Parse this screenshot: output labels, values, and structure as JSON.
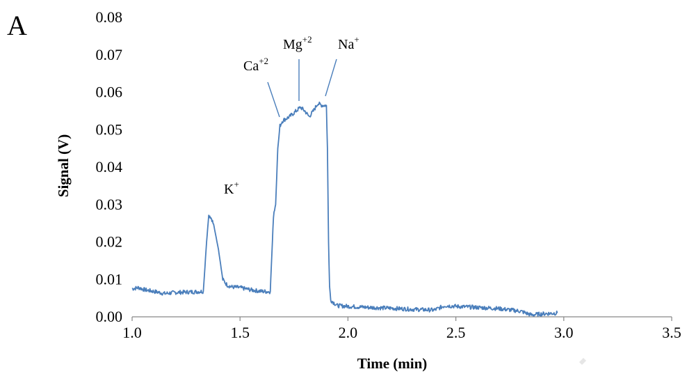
{
  "panel_label": "A",
  "colors": {
    "series": "#4A7EBB",
    "axis": "#868686"
  },
  "chart_data": {
    "type": "line",
    "xlabel": "Time (min)",
    "ylabel": "Signal (V)",
    "xlim": [
      1.0,
      3.5
    ],
    "ylim": [
      0.0,
      0.08
    ],
    "grid": false,
    "x_ticks": [
      1.0,
      1.5,
      2.0,
      2.5,
      3.0,
      3.5
    ],
    "y_ticks": [
      0.0,
      0.01,
      0.02,
      0.03,
      0.04,
      0.05,
      0.06,
      0.07,
      0.08
    ],
    "x_tick_labels": [
      "1.0",
      "1.5",
      "2.0",
      "2.5",
      "3.0",
      "3.5"
    ],
    "y_tick_labels": [
      "0.00",
      "0.01",
      "0.02",
      "0.03",
      "0.04",
      "0.05",
      "0.06",
      "0.07",
      "0.08"
    ],
    "series": [
      {
        "x": [
          1.0,
          1.03,
          1.06,
          1.1,
          1.15,
          1.2,
          1.25,
          1.3,
          1.33,
          1.345,
          1.355,
          1.36,
          1.37,
          1.38,
          1.4,
          1.42,
          1.44,
          1.46,
          1.5,
          1.55,
          1.6,
          1.64,
          1.655,
          1.665,
          1.675,
          1.685,
          1.695,
          1.7,
          1.73,
          1.76,
          1.78,
          1.8,
          1.82,
          1.84,
          1.86,
          1.88,
          1.9,
          1.905,
          1.91,
          1.915,
          1.92,
          1.95,
          2.0,
          2.1,
          2.2,
          2.3,
          2.4,
          2.45,
          2.5,
          2.6,
          2.7,
          2.8,
          2.85,
          2.9,
          2.97
        ],
        "y": [
          0.0075,
          0.0078,
          0.0072,
          0.0068,
          0.0062,
          0.0065,
          0.0066,
          0.0067,
          0.0068,
          0.02,
          0.027,
          0.027,
          0.026,
          0.024,
          0.018,
          0.01,
          0.0085,
          0.008,
          0.0078,
          0.0072,
          0.0068,
          0.0067,
          0.027,
          0.03,
          0.045,
          0.051,
          0.0522,
          0.0525,
          0.0535,
          0.055,
          0.056,
          0.055,
          0.0535,
          0.055,
          0.057,
          0.0565,
          0.0565,
          0.045,
          0.02,
          0.008,
          0.0045,
          0.003,
          0.0028,
          0.0025,
          0.0023,
          0.002,
          0.0018,
          0.003,
          0.0028,
          0.0025,
          0.0022,
          0.0015,
          0.0005,
          0.0008,
          0.001
        ]
      }
    ],
    "annotations": [
      {
        "base": "K",
        "sup": "+"
      },
      {
        "base": "Ca",
        "sup": "+2"
      },
      {
        "base": "Mg",
        "sup": "+2"
      },
      {
        "base": "Na",
        "sup": "+"
      }
    ]
  }
}
